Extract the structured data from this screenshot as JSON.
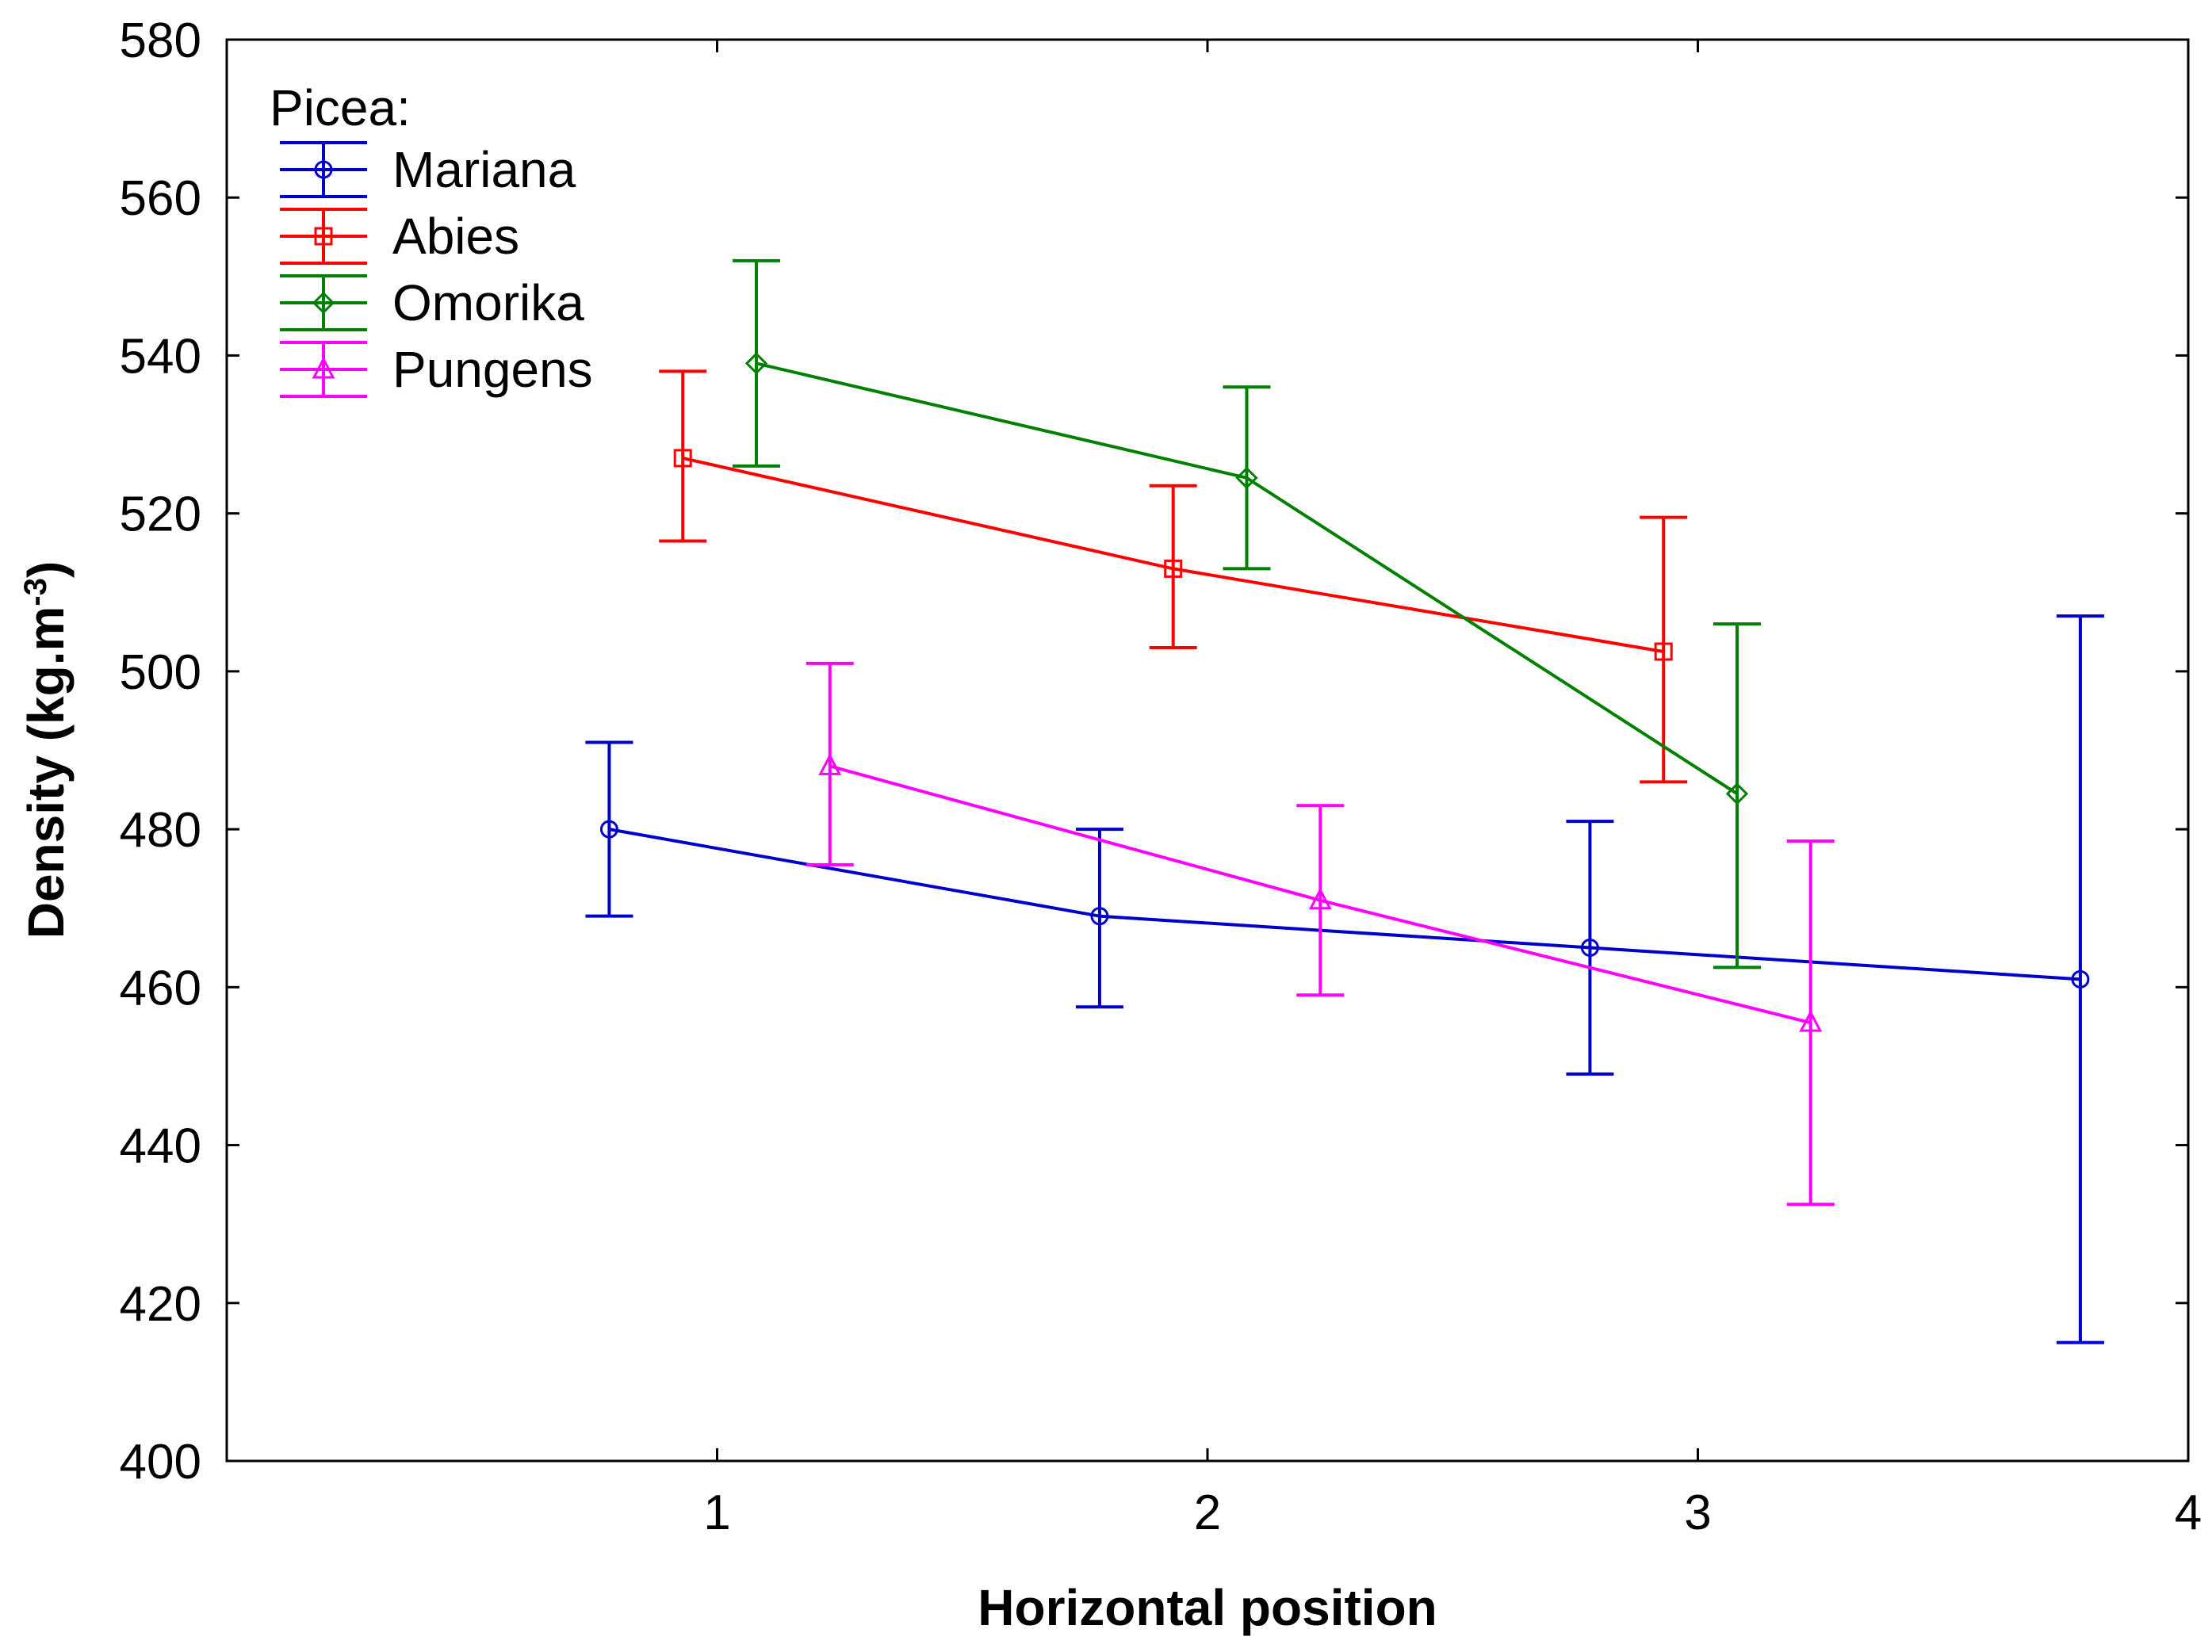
{
  "chart_data": {
    "type": "line",
    "title": "",
    "xlabel": "Horizontal position",
    "ylabel": "Density (kg.m",
    "ylabel_superscript": "-3",
    "ylabel_suffix": ")",
    "xlim": [
      0,
      4
    ],
    "ylim": [
      400,
      580
    ],
    "xticks": [
      "1",
      "2",
      "3",
      "4"
    ],
    "yticks": [
      "400",
      "420",
      "440",
      "460",
      "480",
      "500",
      "520",
      "540",
      "560",
      "580"
    ],
    "legend_title": "Picea:",
    "legend_position": "top-left",
    "series": [
      {
        "name": "Mariana",
        "color": "#0000cc",
        "marker": "circle",
        "x": [
          0.78,
          1.78,
          2.78,
          3.78
        ],
        "values": [
          480,
          469,
          465,
          461
        ],
        "err_low": [
          469,
          457.5,
          449,
          415
        ],
        "err_high": [
          491,
          480,
          481,
          507
        ]
      },
      {
        "name": "Abies",
        "color": "#ff0000",
        "marker": "square",
        "x": [
          0.93,
          1.93,
          2.93
        ],
        "values": [
          527,
          513,
          502.5
        ],
        "err_low": [
          516.5,
          503,
          486
        ],
        "err_high": [
          538,
          523.5,
          519.5
        ]
      },
      {
        "name": "Omorika",
        "color": "#008000",
        "marker": "diamond",
        "x": [
          1.08,
          2.08,
          3.08
        ],
        "values": [
          539,
          524.5,
          484.5
        ],
        "err_low": [
          526,
          513,
          462.5
        ],
        "err_high": [
          552,
          536,
          506
        ]
      },
      {
        "name": "Pungens",
        "color": "#ff00ff",
        "marker": "triangle",
        "x": [
          1.23,
          2.23,
          3.23
        ],
        "values": [
          488,
          471,
          455.5
        ],
        "err_low": [
          475.5,
          459,
          432.5
        ],
        "err_high": [
          501,
          483,
          478.5
        ]
      }
    ]
  }
}
